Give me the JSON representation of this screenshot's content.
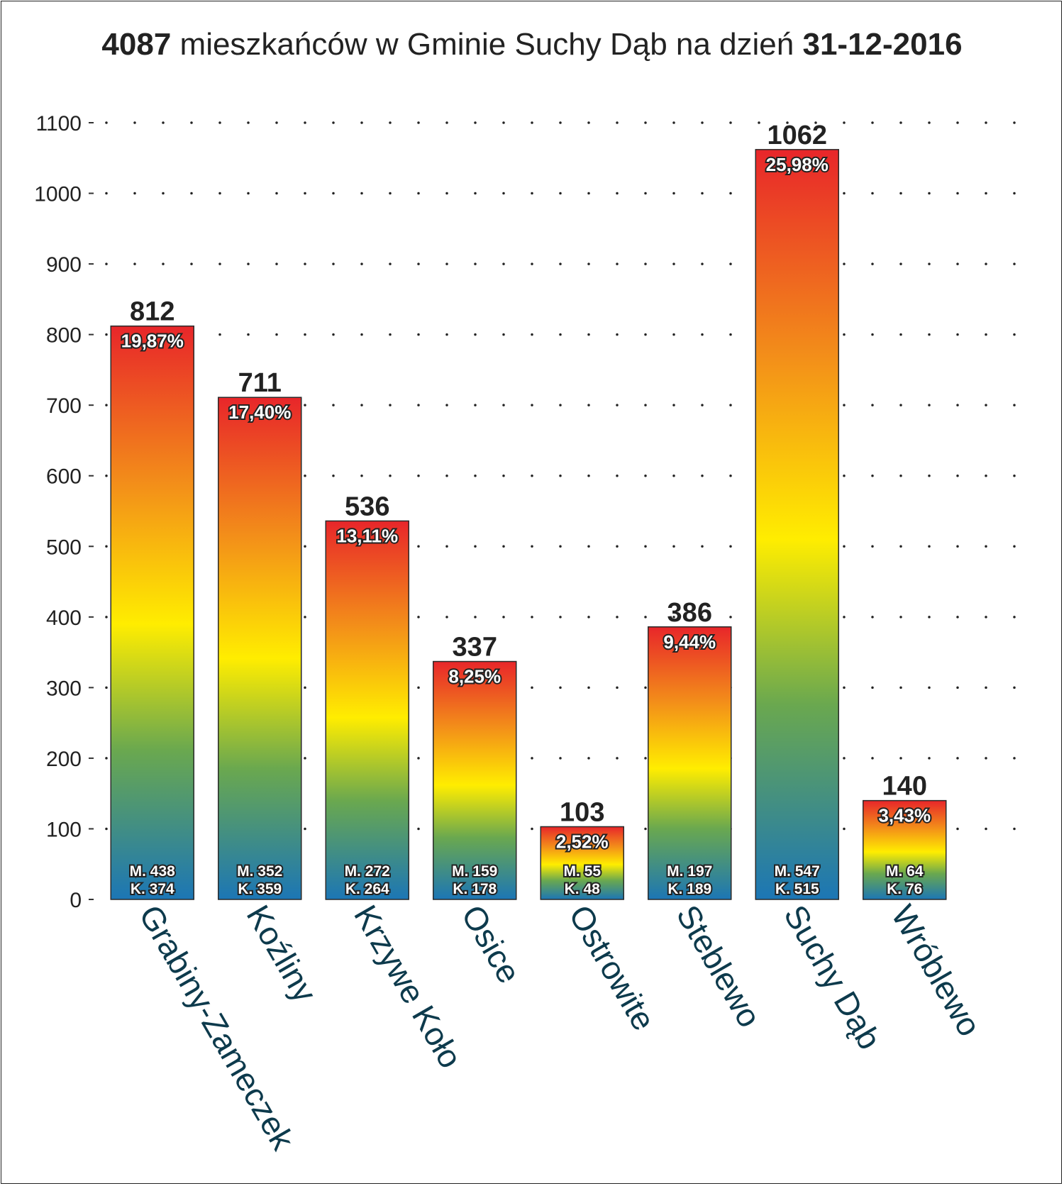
{
  "title": {
    "count": "4087",
    "text": " mieszkańców w Gminie Suchy Dąb na dzień ",
    "date": "31-12-2016"
  },
  "colors": {
    "gradient_top": "#e8262a",
    "gradient_orange": "#f39019",
    "gradient_yellow": "#ffed00",
    "gradient_green": "#6aa84f",
    "gradient_bottom": "#1c76b5"
  },
  "chart_data": {
    "type": "bar",
    "title": "4087 mieszkańców w Gminie Suchy Dąb na dzień 31-12-2016",
    "xlabel": "",
    "ylabel": "",
    "ylim": [
      0,
      1100
    ],
    "yticks": [
      0,
      100,
      200,
      300,
      400,
      500,
      600,
      700,
      800,
      900,
      1000,
      1100
    ],
    "grid": "dotted horizontal",
    "categories": [
      "Grabiny-Zameczek",
      "Koźliny",
      "Krzywe Koło",
      "Osice",
      "Ostrowite",
      "Steblewo",
      "Suchy Dąb",
      "Wróblewo"
    ],
    "values": [
      812,
      711,
      536,
      337,
      103,
      386,
      1062,
      140
    ],
    "percent_labels": [
      "19,87%",
      "17,40%",
      "13,11%",
      "8,25%",
      "2,52%",
      "9,44%",
      "25,98%",
      "3,43%"
    ],
    "men_labels": [
      "M. 438",
      "M. 352",
      "M. 272",
      "M. 159",
      "M. 55",
      "M. 197",
      "M. 547",
      "M. 64"
    ],
    "women_labels": [
      "K. 374",
      "K. 359",
      "K. 264",
      "K. 178",
      "K. 48",
      "K. 189",
      "K. 515",
      "K. 76"
    ]
  }
}
